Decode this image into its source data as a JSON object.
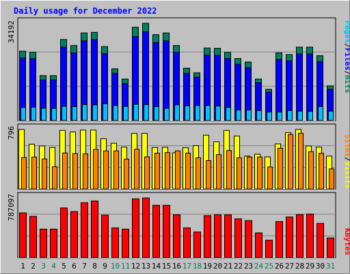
{
  "chart_data": [
    {
      "type": "bar",
      "title": "Daily usage for December 2022",
      "panel": "top",
      "max_label": "34192",
      "ylabel_parts": [
        "Pages",
        "/",
        "Files",
        "/",
        "Hits"
      ],
      "categories": [
        "1",
        "2",
        "3",
        "4",
        "5",
        "6",
        "7",
        "8",
        "9",
        "10",
        "11",
        "12",
        "13",
        "14",
        "15",
        "16",
        "17",
        "18",
        "19",
        "20",
        "21",
        "22",
        "23",
        "24",
        "25",
        "26",
        "27",
        "28",
        "29",
        "30",
        "31"
      ],
      "series": [
        {
          "name": "Hits",
          "values": [
            24400,
            24000,
            15800,
            15800,
            28500,
            26400,
            30800,
            31000,
            26000,
            18200,
            14600,
            32800,
            34192,
            30200,
            30800,
            26400,
            18400,
            16800,
            25500,
            25400,
            24000,
            21800,
            20600,
            14600,
            11000,
            23800,
            23200,
            25800,
            25800,
            22800,
            12200
          ]
        },
        {
          "name": "Files",
          "values": [
            22000,
            21800,
            14300,
            14300,
            25800,
            23800,
            28000,
            28500,
            23500,
            16600,
            13000,
            29500,
            31200,
            27400,
            28000,
            24000,
            16600,
            15300,
            23000,
            22900,
            21800,
            19800,
            18600,
            13300,
            10000,
            21500,
            21000,
            23400,
            23400,
            20700,
            11000
          ]
        },
        {
          "name": "Pages",
          "values": [
            4600,
            4700,
            4300,
            4200,
            5000,
            4900,
            5600,
            5500,
            5900,
            5300,
            5000,
            5700,
            5600,
            4900,
            4300,
            5500,
            5200,
            5300,
            5300,
            5100,
            4600,
            3700,
            3700,
            3500,
            3000,
            3000,
            3500,
            3300,
            3200,
            4900,
            3300
          ]
        }
      ]
    },
    {
      "type": "bar",
      "panel": "middle",
      "max_label": "796",
      "ylabel_parts": [
        "Sites",
        "/",
        "Visits"
      ],
      "categories": [
        "1",
        "2",
        "3",
        "4",
        "5",
        "6",
        "7",
        "8",
        "9",
        "10",
        "11",
        "12",
        "13",
        "14",
        "15",
        "16",
        "17",
        "18",
        "19",
        "20",
        "21",
        "22",
        "23",
        "24",
        "25",
        "26",
        "27",
        "28",
        "29",
        "30",
        "31"
      ],
      "series": [
        {
          "name": "Visits",
          "values": [
            796,
            600,
            576,
            556,
            784,
            762,
            788,
            788,
            672,
            612,
            560,
            744,
            744,
            555,
            558,
            485,
            552,
            580,
            720,
            632,
            784,
            708,
            440,
            466,
            430,
            604,
            754,
            796,
            576,
            560,
            440
          ]
        },
        {
          "name": "Sites",
          "values": [
            422,
            428,
            402,
            298,
            483,
            475,
            470,
            530,
            510,
            510,
            400,
            532,
            430,
            480,
            488,
            510,
            480,
            418,
            380,
            460,
            515,
            418,
            428,
            428,
            294,
            545,
            730,
            745,
            500,
            478,
            270
          ]
        }
      ]
    },
    {
      "type": "bar",
      "panel": "bottom",
      "max_label": "787097",
      "ylabel_parts": [
        "KBytes"
      ],
      "categories": [
        "1",
        "2",
        "3",
        "4",
        "5",
        "6",
        "7",
        "8",
        "9",
        "10",
        "11",
        "12",
        "13",
        "14",
        "15",
        "16",
        "17",
        "18",
        "19",
        "20",
        "21",
        "22",
        "23",
        "24",
        "25",
        "26",
        "27",
        "28",
        "29",
        "30",
        "31"
      ],
      "series": [
        {
          "name": "KBytes",
          "values": [
            590000,
            544000,
            376000,
            376000,
            656000,
            608000,
            725000,
            748000,
            560000,
            392000,
            376000,
            776000,
            787097,
            690000,
            690000,
            564000,
            392000,
            338000,
            554000,
            564000,
            564000,
            512000,
            488000,
            326000,
            230000,
            476000,
            536000,
            567000,
            575000,
            451000,
            260000
          ]
        }
      ]
    }
  ],
  "colors": {
    "hits": "#00805c",
    "files": "#0000ff",
    "pages": "#00c0ff",
    "visits": "#ffff00",
    "sites": "#ff8000",
    "kbytes": "#ff0000",
    "title": "#0000ff",
    "panel_bg": "#c0c0c0",
    "weekend_text": "#00805c"
  },
  "weekend_days": [
    "3",
    "4",
    "10",
    "11",
    "17",
    "18",
    "24",
    "25",
    "31"
  ]
}
